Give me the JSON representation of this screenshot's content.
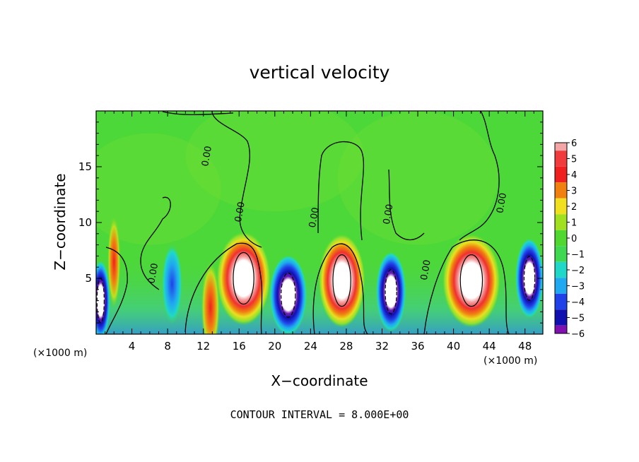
{
  "chart_data": {
    "type": "heatmap",
    "title": "vertical velocity",
    "xlabel": "X−coordinate",
    "ylabel": "Z−coordinate",
    "x_unit_left": "(×1000 m)",
    "x_unit_right": "(×1000 m)",
    "xlim": [
      0,
      50
    ],
    "ylim": [
      0,
      20
    ],
    "x_ticks": [
      4,
      8,
      12,
      16,
      20,
      24,
      28,
      32,
      36,
      40,
      44,
      48
    ],
    "y_ticks": [
      5,
      10,
      15
    ],
    "colorbar": {
      "levels": [
        6,
        5,
        4,
        3,
        2,
        1,
        0,
        -1,
        -2,
        -3,
        -4,
        -5,
        -6
      ],
      "colors": [
        "#f4a6a6",
        "#f03c3c",
        "#f02020",
        "#f08010",
        "#f0e020",
        "#a0e020",
        "#50d830",
        "#40d850",
        "#20d8c8",
        "#20a8f0",
        "#2040e8",
        "#1010b0",
        "#8010b0"
      ]
    },
    "contour_labels": [
      "0.00",
      "0.00",
      "0.00",
      "0.00",
      "0.00",
      "0.00",
      "0.00"
    ],
    "features": [
      {
        "x": 16.5,
        "z": 5.0,
        "w": 5.8,
        "max": 7,
        "sign": "up"
      },
      {
        "x": 27.5,
        "z": 4.8,
        "w": 5.0,
        "max": 7,
        "sign": "up"
      },
      {
        "x": 42.0,
        "z": 4.8,
        "w": 6.2,
        "max": 7,
        "sign": "up"
      },
      {
        "x": 12.8,
        "z": 2.4,
        "w": 2.0,
        "max": 5,
        "sign": "up"
      },
      {
        "x": 2.0,
        "z": 6.5,
        "w": 1.4,
        "max": 3,
        "sign": "up"
      },
      {
        "x": 21.5,
        "z": 3.5,
        "w": 4.0,
        "max": -7,
        "sign": "down"
      },
      {
        "x": 33.0,
        "z": 3.8,
        "w": 3.2,
        "max": -7,
        "sign": "down"
      },
      {
        "x": 48.5,
        "z": 5.0,
        "w": 3.0,
        "max": -7,
        "sign": "down"
      },
      {
        "x": 0.5,
        "z": 3.0,
        "w": 2.0,
        "max": -7,
        "sign": "down"
      },
      {
        "x": 8.5,
        "z": 4.5,
        "w": 2.2,
        "max": -4,
        "sign": "down"
      }
    ],
    "grid": false
  },
  "footer": "CONTOUR INTERVAL = 8.000E+00"
}
